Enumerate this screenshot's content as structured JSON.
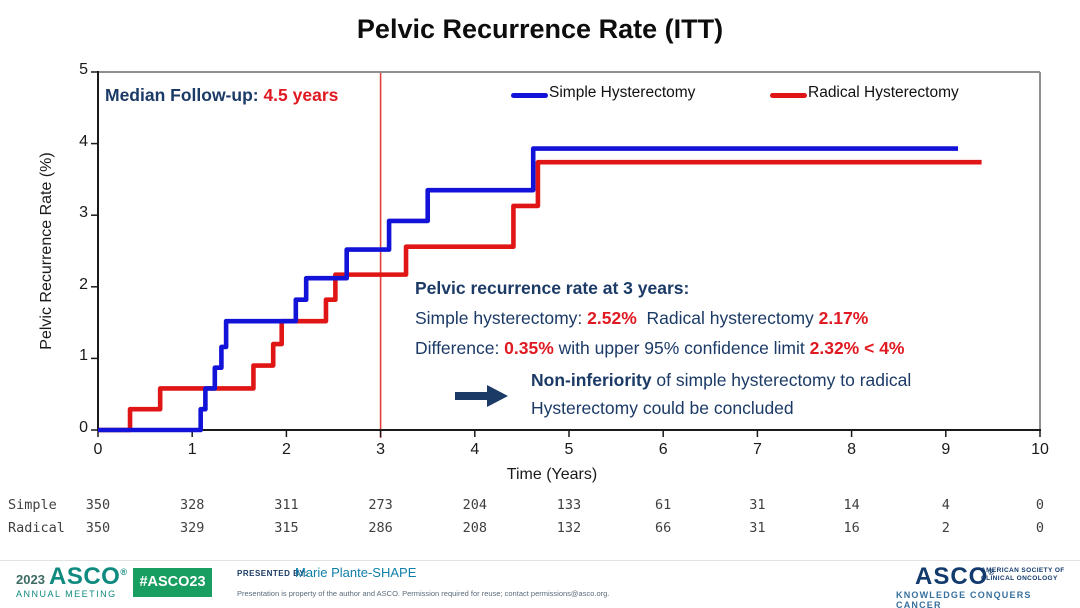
{
  "page": {
    "title": "Pelvic Recurrence Rate (ITT)"
  },
  "colors": {
    "navy": "#1b3a66",
    "red": "#e01a22",
    "simple_blue": "#1212d8",
    "radical_red": "#e01616",
    "ref_line": "#e04040",
    "axis_black": "#1a1a1a",
    "frame_gray": "#8f8f8f",
    "footer_teal": "#0f8a7f",
    "badge_green": "#189e60",
    "footer_blue": "#0f7fa8",
    "asco_navy": "#123a6d",
    "tagline_blue": "#35709e"
  },
  "median_followup": {
    "label": "Median Follow-up: ",
    "value": "4.5 years"
  },
  "annotation": {
    "heading": "Pelvic recurrence rate at 3 years:",
    "l2a": "Simple hysterectomy: ",
    "l2b": "2.52%",
    "l2c": "  Radical hysterectomy ",
    "l2d": "2.17%",
    "l3a": "Difference: ",
    "l3b": "0.35%",
    "l3c": " with upper 95% confidence limit ",
    "l3d": "2.32% < 4%"
  },
  "conclusion": {
    "bold": "Non-inferiority",
    "rest": " of simple hysterectomy to radical",
    "line2": "Hysterectomy could be concluded"
  },
  "chart_data": {
    "type": "line",
    "subtype": "kaplan-meier-step",
    "title": "Pelvic Recurrence Rate (ITT)",
    "xlabel": "Time (Years)",
    "ylabel": "Pelvic Recurrence Rate (%)",
    "xlim": [
      0,
      10
    ],
    "ylim": [
      0,
      5
    ],
    "x_ticks": [
      0,
      1,
      2,
      3,
      4,
      5,
      6,
      7,
      8,
      9,
      10
    ],
    "y_ticks": [
      0,
      1,
      2,
      3,
      4,
      5
    ],
    "reference_line_x": 3,
    "grid": false,
    "legend_position": "top-inside",
    "series": [
      {
        "name": "Simple Hysterectomy",
        "color": "#1212d8",
        "steps": [
          [
            0,
            0
          ],
          [
            1.09,
            0.29
          ],
          [
            1.14,
            0.58
          ],
          [
            1.24,
            0.87
          ],
          [
            1.31,
            1.16
          ],
          [
            1.36,
            1.52
          ],
          [
            2.1,
            1.82
          ],
          [
            2.21,
            2.12
          ],
          [
            2.64,
            2.52
          ],
          [
            3.09,
            2.92
          ],
          [
            3.5,
            3.35
          ],
          [
            4.62,
            3.93
          ]
        ],
        "end": 9.13
      },
      {
        "name": "Radical Hysterectomy",
        "color": "#e01616",
        "steps": [
          [
            0,
            0
          ],
          [
            0.34,
            0.29
          ],
          [
            0.66,
            0.58
          ],
          [
            1.65,
            0.9
          ],
          [
            1.86,
            1.2
          ],
          [
            1.95,
            1.52
          ],
          [
            2.42,
            1.82
          ],
          [
            2.52,
            2.17
          ],
          [
            3.27,
            2.56
          ],
          [
            4.41,
            3.13
          ],
          [
            4.67,
            3.74
          ]
        ],
        "end": 9.38
      }
    ],
    "at_risk": {
      "times": [
        0,
        1,
        2,
        3,
        4,
        5,
        6,
        7,
        8,
        9,
        10
      ],
      "rows": [
        {
          "label": "Simple",
          "values": [
            350,
            328,
            311,
            273,
            204,
            133,
            61,
            31,
            14,
            4,
            0
          ]
        },
        {
          "label": "Radical",
          "values": [
            350,
            329,
            315,
            286,
            208,
            132,
            66,
            31,
            16,
            2,
            0
          ]
        }
      ]
    }
  },
  "footer": {
    "year": "2023",
    "asco": "ASCO",
    "reg": "®",
    "annual_meeting": "ANNUAL MEETING",
    "hashtag": "#ASCO23",
    "presented_by_label": "PRESENTED BY:",
    "presenter": "Marie Plante-SHAPE",
    "fine_print": "Presentation is property of the author and ASCO. Permission required for reuse; contact permissions@asco.org.",
    "asco_right": "ASCO",
    "asco_right_sub1": "AMERICAN SOCIETY OF",
    "asco_right_sub2": "CLINICAL ONCOLOGY",
    "tagline": "KNOWLEDGE CONQUERS CANCER"
  }
}
